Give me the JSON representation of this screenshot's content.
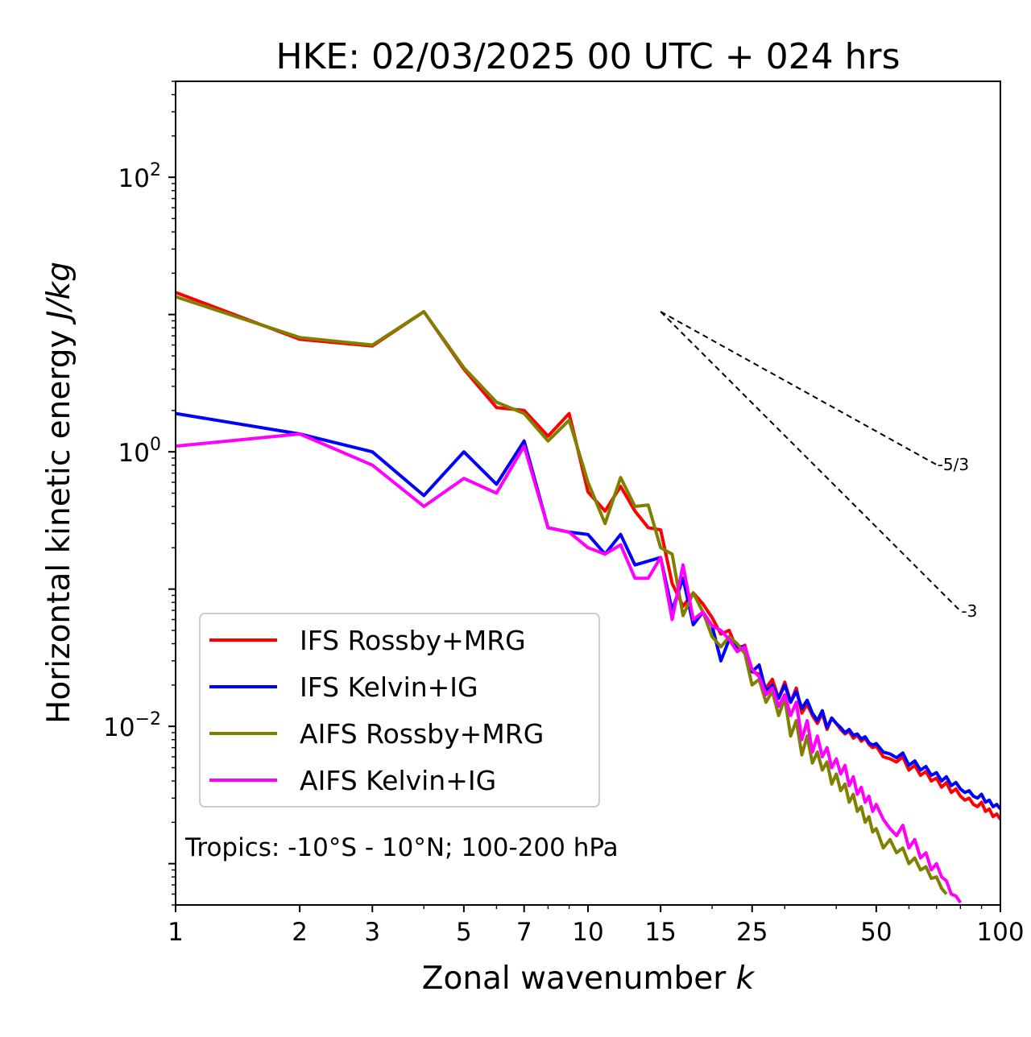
{
  "chart_data": {
    "type": "line",
    "title": "HKE: 02/03/2025 00 UTC + 024 hrs",
    "xlabel": "Zonal wavenumber",
    "xlabel_var": "k",
    "ylabel": "Horizontal kinetic energy",
    "ylabel_unit": "J/kg",
    "xscale": "log",
    "yscale": "log",
    "xlim": [
      1,
      100
    ],
    "ylim": [
      0.0005,
      500
    ],
    "xticks": [
      1,
      2,
      3,
      5,
      7,
      10,
      15,
      25,
      50,
      100
    ],
    "xtick_labels": [
      "1",
      "2",
      "3",
      "5",
      "7",
      "10",
      "15",
      "25",
      "50",
      "100"
    ],
    "yticks": [
      {
        "value": 100,
        "base": "10",
        "exp": "2"
      },
      {
        "value": 1,
        "base": "10",
        "exp": "0"
      },
      {
        "value": 0.01,
        "base": "10",
        "exp": "−2"
      }
    ],
    "grid": false,
    "legend_position": "lower-left",
    "annotation": "Tropics: -10°S - 10°N; 100-200 hPa",
    "reference_lines": [
      {
        "label": "-5/3",
        "slope": -1.6667,
        "x0": 15,
        "y0": 10.5,
        "x1": 70
      },
      {
        "label": "-3",
        "slope": -3,
        "x0": 15,
        "y0": 10.5,
        "x1": 80
      }
    ],
    "series": [
      {
        "name": "IFS Rossby+MRG",
        "color": "#ff0000",
        "x": [
          1,
          2,
          3,
          4,
          5,
          6,
          7,
          8,
          9,
          10,
          11,
          12,
          13,
          14,
          15,
          16,
          17,
          18,
          19,
          20,
          21,
          22,
          23,
          24,
          25,
          26,
          27,
          28,
          29,
          30,
          31,
          32,
          33,
          34,
          35,
          36,
          37,
          38,
          39,
          40,
          41,
          42,
          43,
          44,
          45,
          46,
          47,
          48,
          49,
          50,
          52,
          54,
          56,
          58,
          60,
          62,
          64,
          66,
          68,
          70,
          72,
          74,
          76,
          78,
          80,
          82,
          84,
          86,
          88,
          90,
          92,
          94,
          96,
          98,
          100
        ],
        "y": [
          14.5,
          6.6,
          5.9,
          10.5,
          4.0,
          2.1,
          2.0,
          1.3,
          1.9,
          0.51,
          0.37,
          0.56,
          0.37,
          0.28,
          0.27,
          0.11,
          0.075,
          0.094,
          0.078,
          0.062,
          0.047,
          0.05,
          0.036,
          0.039,
          0.025,
          0.024,
          0.019,
          0.022,
          0.016,
          0.021,
          0.015,
          0.019,
          0.0125,
          0.0145,
          0.012,
          0.0105,
          0.0125,
          0.0095,
          0.0115,
          0.0105,
          0.0095,
          0.0088,
          0.0092,
          0.0082,
          0.0086,
          0.0078,
          0.0082,
          0.0074,
          0.007,
          0.0072,
          0.006,
          0.0058,
          0.0055,
          0.006,
          0.0048,
          0.0052,
          0.0044,
          0.0047,
          0.004,
          0.0042,
          0.0036,
          0.0039,
          0.0033,
          0.0035,
          0.0031,
          0.0029,
          0.003,
          0.0027,
          0.0026,
          0.0028,
          0.0024,
          0.0025,
          0.0022,
          0.0023,
          0.0021
        ]
      },
      {
        "name": "IFS Kelvin+IG",
        "color": "#0000ff",
        "x": [
          1,
          2,
          3,
          4,
          5,
          6,
          7,
          8,
          9,
          10,
          11,
          12,
          13,
          14,
          15,
          16,
          17,
          18,
          19,
          20,
          21,
          22,
          23,
          24,
          25,
          26,
          27,
          28,
          29,
          30,
          31,
          32,
          33,
          34,
          35,
          36,
          37,
          38,
          39,
          40,
          41,
          42,
          43,
          44,
          45,
          46,
          47,
          48,
          49,
          50,
          52,
          54,
          56,
          58,
          60,
          62,
          64,
          66,
          68,
          70,
          72,
          74,
          76,
          78,
          80,
          82,
          84,
          86,
          88,
          90,
          92,
          94,
          96,
          98,
          100
        ],
        "y": [
          1.9,
          1.35,
          1.0,
          0.48,
          1.0,
          0.58,
          1.2,
          0.28,
          0.26,
          0.25,
          0.18,
          0.25,
          0.15,
          0.16,
          0.17,
          0.07,
          0.12,
          0.055,
          0.068,
          0.054,
          0.03,
          0.043,
          0.038,
          0.038,
          0.025,
          0.028,
          0.018,
          0.02,
          0.016,
          0.02,
          0.015,
          0.018,
          0.0135,
          0.0155,
          0.0125,
          0.011,
          0.013,
          0.0098,
          0.0115,
          0.0105,
          0.0098,
          0.009,
          0.0095,
          0.0086,
          0.0088,
          0.0081,
          0.0084,
          0.0076,
          0.0073,
          0.0075,
          0.0065,
          0.0063,
          0.0059,
          0.0064,
          0.0052,
          0.0056,
          0.0048,
          0.0051,
          0.0044,
          0.0046,
          0.004,
          0.0043,
          0.0037,
          0.0039,
          0.0035,
          0.0033,
          0.0034,
          0.0031,
          0.003,
          0.0032,
          0.0028,
          0.0029,
          0.0026,
          0.0027,
          0.0025
        ]
      },
      {
        "name": "AIFS Rossby+MRG",
        "color": "#808000",
        "x": [
          1,
          2,
          3,
          4,
          5,
          6,
          7,
          8,
          9,
          10,
          11,
          12,
          13,
          14,
          15,
          16,
          17,
          18,
          19,
          20,
          21,
          22,
          23,
          24,
          25,
          26,
          27,
          28,
          29,
          30,
          31,
          32,
          33,
          34,
          35,
          36,
          37,
          38,
          39,
          40,
          41,
          42,
          43,
          44,
          45,
          46,
          47,
          48,
          49,
          50,
          52,
          54,
          56,
          58,
          60,
          62,
          64,
          66,
          68,
          70,
          72,
          74
        ],
        "y": [
          13.5,
          6.8,
          6.0,
          10.5,
          4.1,
          2.3,
          1.9,
          1.2,
          1.7,
          0.6,
          0.3,
          0.65,
          0.4,
          0.41,
          0.2,
          0.18,
          0.064,
          0.094,
          0.068,
          0.045,
          0.038,
          0.045,
          0.04,
          0.034,
          0.02,
          0.022,
          0.015,
          0.018,
          0.012,
          0.016,
          0.0085,
          0.011,
          0.0062,
          0.0085,
          0.0054,
          0.0065,
          0.0048,
          0.0055,
          0.0038,
          0.0045,
          0.0034,
          0.0038,
          0.0028,
          0.0032,
          0.0024,
          0.0026,
          0.002,
          0.0022,
          0.0017,
          0.0018,
          0.0013,
          0.0015,
          0.0012,
          0.0013,
          0.001,
          0.0011,
          0.0009,
          0.00095,
          0.00078,
          0.0008,
          0.00066,
          0.0006
        ]
      },
      {
        "name": "AIFS Kelvin+IG",
        "color": "#ff00ff",
        "x": [
          1,
          2,
          3,
          4,
          5,
          6,
          7,
          8,
          9,
          10,
          11,
          12,
          13,
          14,
          15,
          16,
          17,
          18,
          19,
          20,
          21,
          22,
          23,
          24,
          25,
          26,
          27,
          28,
          29,
          30,
          31,
          32,
          33,
          34,
          35,
          36,
          37,
          38,
          39,
          40,
          41,
          42,
          43,
          44,
          45,
          46,
          47,
          48,
          49,
          50,
          52,
          54,
          56,
          58,
          60,
          62,
          64,
          66,
          68,
          70,
          72,
          74,
          76,
          78,
          80
        ],
        "y": [
          1.1,
          1.35,
          0.8,
          0.4,
          0.64,
          0.5,
          1.1,
          0.28,
          0.26,
          0.2,
          0.18,
          0.21,
          0.12,
          0.12,
          0.17,
          0.06,
          0.15,
          0.06,
          0.068,
          0.054,
          0.05,
          0.043,
          0.035,
          0.038,
          0.026,
          0.023,
          0.017,
          0.019,
          0.014,
          0.017,
          0.012,
          0.015,
          0.008,
          0.011,
          0.0065,
          0.0085,
          0.006,
          0.007,
          0.005,
          0.0058,
          0.0045,
          0.0052,
          0.0037,
          0.0043,
          0.0032,
          0.0036,
          0.0028,
          0.0031,
          0.0024,
          0.0027,
          0.0021,
          0.0018,
          0.0016,
          0.0019,
          0.0013,
          0.0015,
          0.0011,
          0.0012,
          0.0009,
          0.001,
          0.0008,
          0.00075,
          0.0006,
          0.00058,
          0.00052
        ]
      }
    ]
  }
}
